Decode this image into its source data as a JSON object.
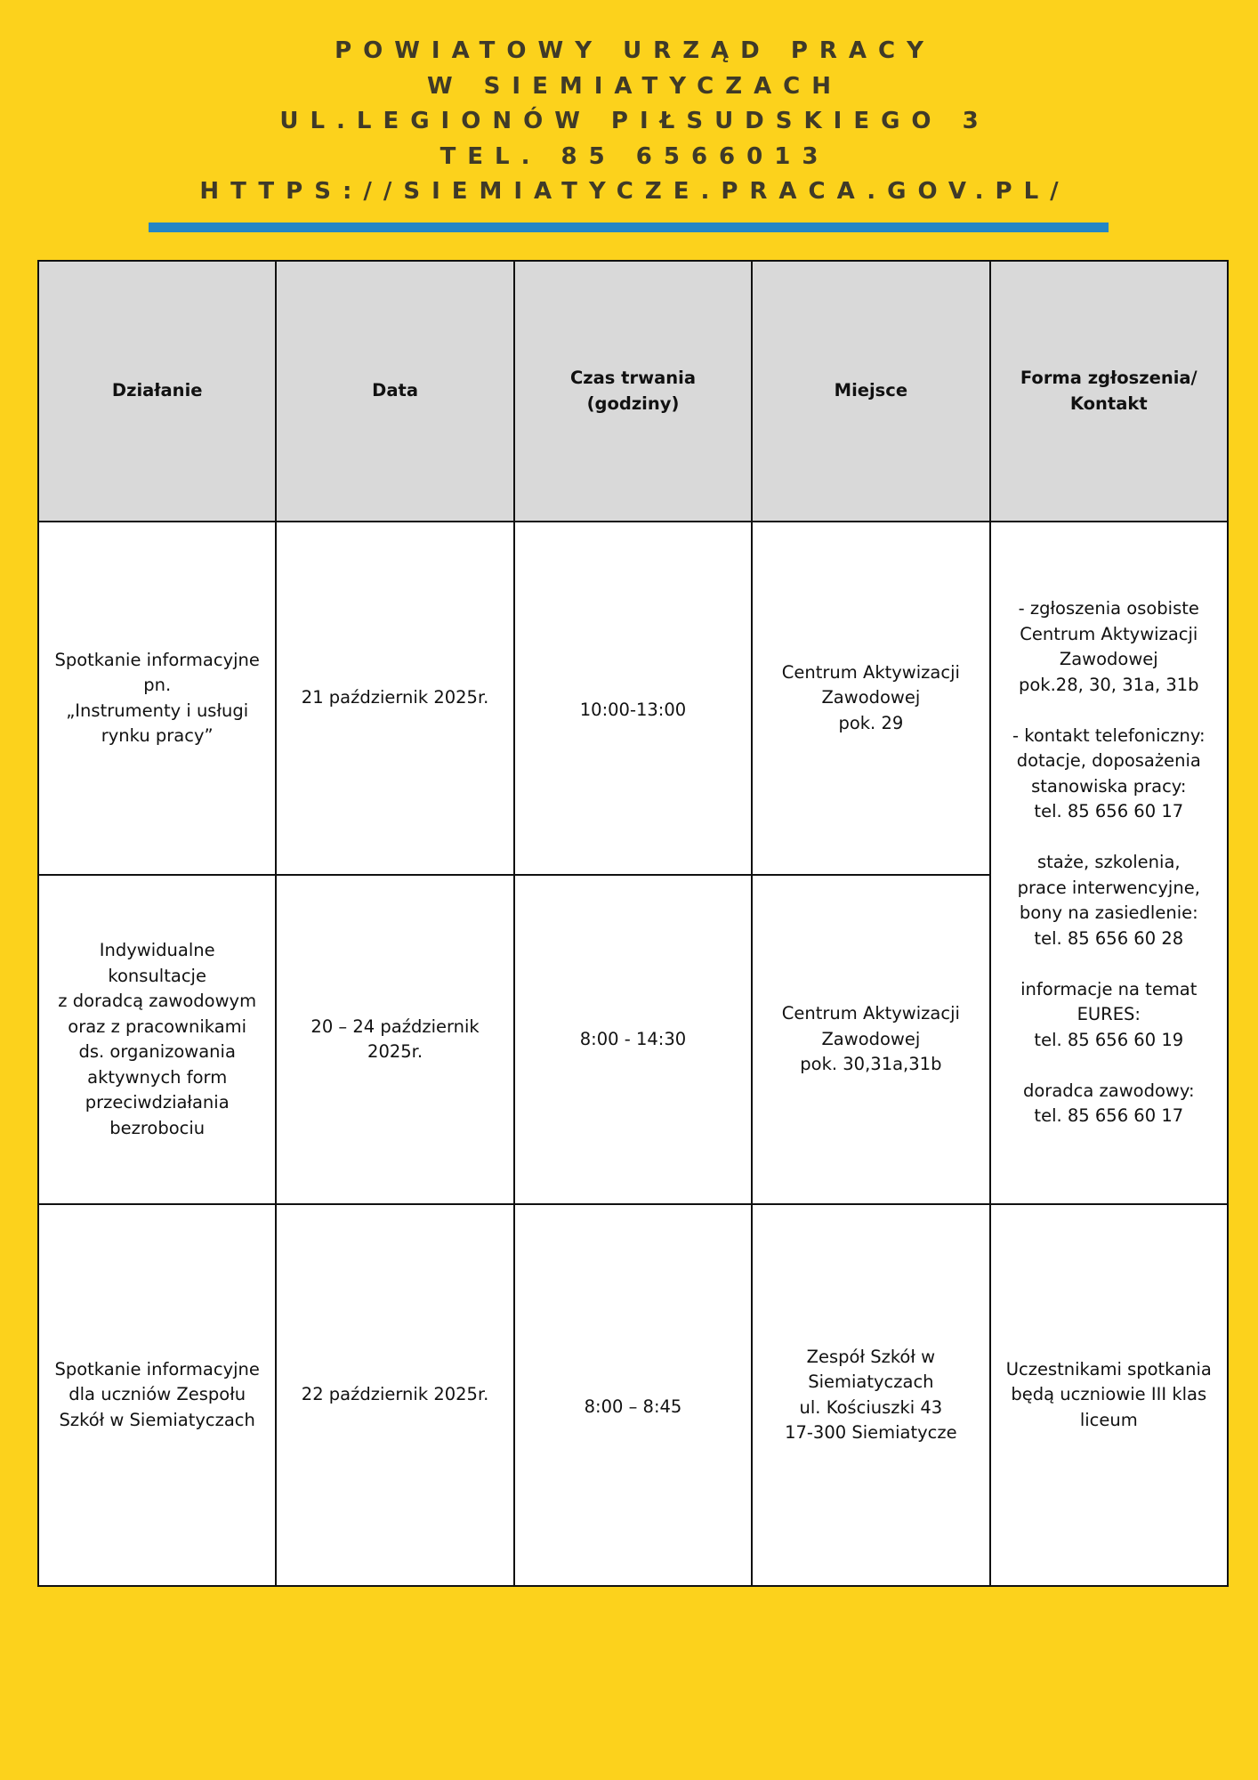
{
  "header": {
    "lines": [
      "POWIATOWY URZĄD PRACY",
      "W SIEMIATYCZACH",
      "UL.LEGIONÓW PIŁSUDSKIEGO 3",
      "TEL. 85 6566013",
      "HTTPS://SIEMIATYCZE.PRACA.GOV.PL/"
    ],
    "accent_color": "#2486c5",
    "background_color": "#fcd21c"
  },
  "table": {
    "columns": [
      "Działanie",
      "Data",
      "Czas trwania\n(godziny)",
      "Miejsce",
      "Forma zgłoszenia/\nKontakt"
    ],
    "rows": [
      {
        "action": "Spotkanie informacyjne\npn.\n„Instrumenty i usługi\nrynku pracy”",
        "date": "21 październik 2025r.",
        "duration": "10:00-13:00",
        "place": "Centrum Aktywizacji\nZawodowej\npok. 29"
      },
      {
        "action": "Indywidualne\nkonsultacje\nz doradcą zawodowym\noraz z pracownikami\nds. organizowania\naktywnych form\nprzeciwdziałania\nbezrobociu",
        "date": "20 – 24 październik\n2025r.",
        "duration": "8:00 - 14:30",
        "place": "Centrum Aktywizacji\nZawodowej\npok. 30,31a,31b"
      },
      {
        "action": "Spotkanie informacyjne\ndla uczniów Zespołu\nSzkół w Siemiatyczach",
        "date": "22 październik 2025r.",
        "duration": "8:00 – 8:45",
        "place": "Zespół Szkół w\nSiemiatyczach\nul. Kościuszki 43\n17-300 Siemiatycze",
        "contact": "Uczestnikami spotkania\nbędą uczniowie III klas\nliceum"
      }
    ],
    "shared_contact": "- zgłoszenia osobiste\nCentrum Aktywizacji\nZawodowej\npok.28, 30, 31a, 31b\n\n- kontakt telefoniczny:\ndotacje, doposażenia\nstanowiska pracy:\ntel. 85 656 60 17\n\nstaże, szkolenia,\nprace interwencyjne,\nbony na zasiedlenie:\ntel. 85 656 60 28\n\ninformacje na temat\nEURES:\ntel. 85 656 60 19\n\ndoradca zawodowy:\ntel. 85 656 60 17"
  }
}
